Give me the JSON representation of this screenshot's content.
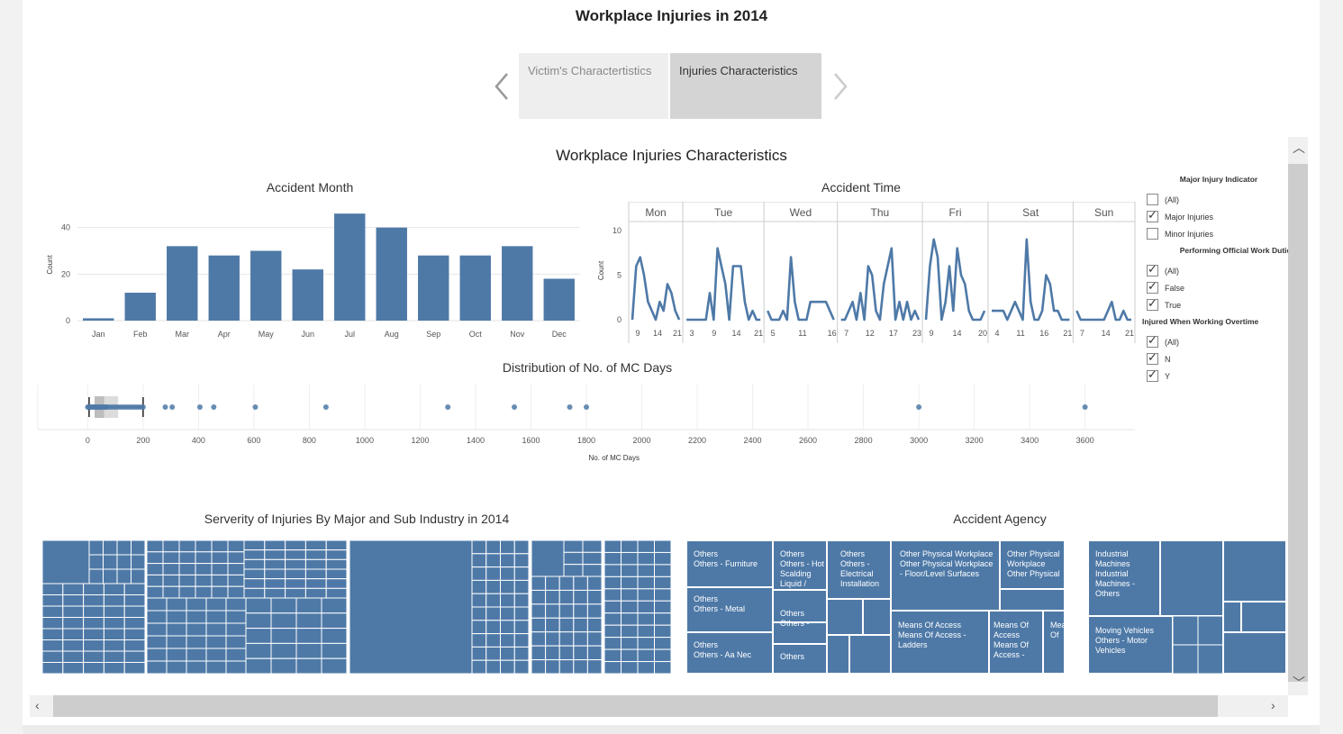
{
  "story": {
    "title": "Workplace Injuries in 2014",
    "tabs": [
      {
        "label": "Victim's Charactertistics",
        "active": false
      },
      {
        "label": "Injuries Characteristics",
        "active": true
      }
    ],
    "prev_icon": "chevron-left-icon",
    "next_icon": "chevron-right-icon"
  },
  "dashboard": {
    "title": "Workplace Injuries Characteristics"
  },
  "colors": {
    "bar": "#4e79a7",
    "line": "#4e79a7",
    "treemap": "#4e79a7"
  },
  "chart_data": [
    {
      "type": "bar",
      "title": "Accident Month",
      "ylabel": "Count",
      "xlabel": "",
      "categories": [
        "Jan",
        "Feb",
        "Mar",
        "Apr",
        "May",
        "Jun",
        "Jul",
        "Aug",
        "Sep",
        "Oct",
        "Nov",
        "Dec"
      ],
      "values": [
        1,
        12,
        32,
        28,
        30,
        22,
        46,
        40,
        28,
        28,
        32,
        18
      ],
      "ylim": [
        0,
        48
      ],
      "yticks": [
        0,
        20,
        40
      ],
      "grid": true
    },
    {
      "type": "line",
      "title": "Accident Time",
      "ylabel": "Count",
      "ylim": [
        0,
        11
      ],
      "yticks": [
        0,
        5,
        10
      ],
      "panels": [
        {
          "day": "Mon",
          "ticks": [
            "9",
            "14",
            "21"
          ],
          "values": [
            0,
            6,
            7,
            5,
            2,
            1,
            0,
            2,
            1,
            4,
            3,
            1,
            0
          ]
        },
        {
          "day": "Tue",
          "ticks": [
            "3",
            "9",
            "14",
            "21"
          ],
          "values": [
            0,
            0,
            0,
            0,
            0,
            0,
            3,
            0,
            8,
            6,
            4,
            0,
            6,
            6,
            6,
            2,
            0,
            1,
            0,
            0
          ]
        },
        {
          "day": "Wed",
          "ticks": [
            "5",
            "11",
            "16"
          ],
          "values": [
            1,
            0,
            0,
            0,
            1,
            0,
            7,
            2,
            0,
            0,
            0,
            2,
            2,
            2,
            2,
            2,
            1,
            0
          ]
        },
        {
          "day": "Thu",
          "ticks": [
            "7",
            "12",
            "17",
            "23"
          ],
          "values": [
            0,
            0,
            1,
            2,
            0,
            3,
            0,
            6,
            5,
            1,
            0,
            4,
            6,
            8,
            0,
            2,
            0,
            2,
            0,
            1,
            0
          ]
        },
        {
          "day": "Fri",
          "ticks": [
            "9",
            "14",
            "20"
          ],
          "values": [
            0,
            6,
            9,
            7,
            0,
            2,
            6,
            1,
            8,
            5,
            4,
            1,
            0,
            0,
            0,
            1
          ]
        },
        {
          "day": "Sat",
          "ticks": [
            "4",
            "11",
            "16",
            "21"
          ],
          "values": [
            1,
            1,
            1,
            1,
            0,
            1,
            2,
            1,
            0,
            9,
            2,
            0,
            0,
            1,
            5,
            4,
            1,
            1,
            0,
            0,
            0
          ]
        },
        {
          "day": "Sun",
          "ticks": [
            "7",
            "14",
            "21"
          ],
          "values": [
            1,
            0,
            0,
            0,
            0,
            0,
            0,
            0,
            1,
            2,
            0,
            0,
            1,
            0,
            0
          ]
        }
      ]
    },
    {
      "type": "scatter",
      "title": "Distribution of No. of MC Days",
      "xlabel": "No. of MC Days",
      "xlim": [
        -180,
        3780
      ],
      "xticks": [
        0,
        200,
        400,
        600,
        800,
        1000,
        1200,
        1400,
        1600,
        1800,
        2000,
        2200,
        2400,
        2600,
        2800,
        3000,
        3200,
        3400,
        3600
      ],
      "values": [
        0,
        5,
        10,
        15,
        20,
        25,
        30,
        35,
        40,
        45,
        50,
        55,
        60,
        65,
        70,
        80,
        90,
        100,
        110,
        120,
        130,
        140,
        150,
        160,
        170,
        180,
        190,
        200,
        280,
        305,
        405,
        455,
        605,
        860,
        1300,
        1540,
        1740,
        1800,
        3000,
        3600
      ],
      "box": {
        "whisker_low": 5,
        "q1": 25,
        "median": 60,
        "q3": 110,
        "whisker_high": 200
      }
    }
  ],
  "filters": [
    {
      "title": "Major Injury Indicator",
      "options": [
        {
          "label": "(All)",
          "checked": false
        },
        {
          "label": "Major Injuries",
          "checked": true
        },
        {
          "label": "Minor Injuries",
          "checked": false
        }
      ]
    },
    {
      "title": "Performing Official Work Duties",
      "options": [
        {
          "label": "(All)",
          "checked": true
        },
        {
          "label": "False",
          "checked": true
        },
        {
          "label": "True",
          "checked": true
        }
      ]
    },
    {
      "title": "Injured When Working Overtime",
      "options": [
        {
          "label": "(All)",
          "checked": true
        },
        {
          "label": "N",
          "checked": true
        },
        {
          "label": "Y",
          "checked": true
        }
      ]
    }
  ],
  "treemap_industry": {
    "title": "Serverity of Injuries By Major and Sub Industry in 2014"
  },
  "treemap_agency": {
    "title": "Accident Agency",
    "labels": [
      "Others\nOthers - Furniture",
      "Others\nOthers - Hot\nScalding\nLiquid /",
      "Others\nOthers -\nElectrical\nInstallation",
      "Other Physical Workplace\nOther Physical Workplace\n- Floor/Level Surfaces",
      "Other Physical\nWorkplace\nOther Physical",
      "Industrial\nMachines\nIndustrial\nMachines -\nOthers",
      "Others\nOthers - Metal",
      "Others\nOthers -",
      "Means Of Access\nMeans Of Access -\nLadders",
      "Means Of\nAccess\nMeans Of\nAccess -",
      "Means\nOf",
      "Moving Vehicles\nOthers - Motor\nVehicles",
      "Others\nOthers - Aa Nec",
      "Others"
    ]
  }
}
